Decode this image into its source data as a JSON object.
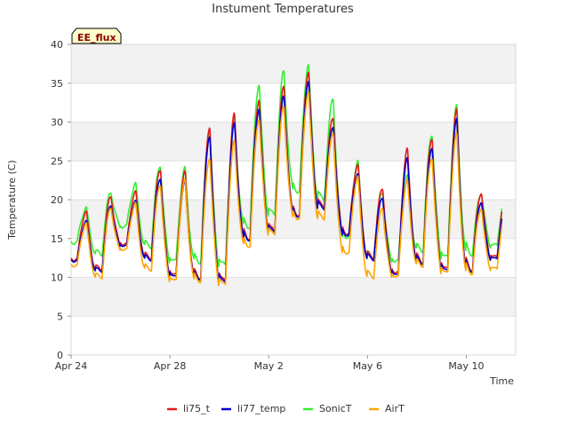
{
  "chart_data": {
    "type": "line",
    "title": "Instument Temperatures",
    "xlabel": "Time",
    "ylabel": "Temperature (C)",
    "badge": "EE_flux",
    "ylim": [
      0,
      40
    ],
    "yticks": [
      0,
      5,
      10,
      15,
      20,
      25,
      30,
      35,
      40
    ],
    "xlim": [
      "2024-04-24",
      "2024-05-12"
    ],
    "xtick_labels": [
      "Apr 24",
      "Apr 28",
      "May 2",
      "May 6",
      "May 10"
    ],
    "xtick_dates": [
      "2024-04-24",
      "2024-04-28",
      "2024-05-02",
      "2024-05-06",
      "2024-05-10"
    ],
    "grid": "horizontal bands",
    "legend_position": "bottom-center",
    "daily_extremes": {
      "dates": [
        "2024-04-24",
        "2024-04-25",
        "2024-04-26",
        "2024-04-27",
        "2024-04-28",
        "2024-04-29",
        "2024-04-30",
        "2024-05-01",
        "2024-05-02",
        "2024-05-03",
        "2024-05-04",
        "2024-05-05",
        "2024-05-06",
        "2024-05-07",
        "2024-05-08",
        "2024-05-09",
        "2024-05-10",
        "2024-05-11"
      ],
      "min_li75": [
        12.3,
        11.0,
        14.2,
        12.5,
        10.2,
        10.0,
        9.5,
        15.0,
        16.0,
        18.0,
        19.0,
        15.5,
        12.5,
        10.5,
        12.0,
        11.0,
        11.0,
        12.5
      ],
      "max_li75": [
        18.5,
        20.5,
        21.0,
        24.0,
        23.5,
        29.5,
        31.0,
        33.0,
        34.5,
        36.5,
        30.5,
        24.5,
        21.5,
        26.5,
        28.0,
        31.5,
        21.0,
        21.0
      ],
      "min_sonic": [
        14.5,
        13.0,
        16.5,
        14.0,
        12.0,
        12.0,
        11.5,
        16.5,
        18.0,
        21.0,
        20.0,
        15.0,
        12.5,
        12.0,
        13.5,
        12.5,
        13.0,
        14.0
      ],
      "max_sonic": [
        19.0,
        21.0,
        22.0,
        24.5,
        24.0,
        29.0,
        30.5,
        35.0,
        36.5,
        37.5,
        33.0,
        25.0,
        21.0,
        23.0,
        28.5,
        32.0,
        21.0,
        21.0
      ],
      "min_airt": [
        11.5,
        10.0,
        13.5,
        11.0,
        9.5,
        9.5,
        9.0,
        14.0,
        15.5,
        17.5,
        17.5,
        13.0,
        10.0,
        10.0,
        11.5,
        10.5,
        10.5,
        11.0
      ],
      "max_airt": [
        17.0,
        19.0,
        19.5,
        22.0,
        22.5,
        25.5,
        27.5,
        30.5,
        32.0,
        34.0,
        28.5,
        23.0,
        19.0,
        22.5,
        25.5,
        28.5,
        19.0,
        19.0
      ]
    },
    "series": [
      {
        "name": "li75_t",
        "color": "#e41a1c"
      },
      {
        "name": "li77_temp",
        "color": "#0000cd"
      },
      {
        "name": "SonicT",
        "color": "#33ee33"
      },
      {
        "name": "AirT",
        "color": "#ffa500"
      }
    ]
  }
}
